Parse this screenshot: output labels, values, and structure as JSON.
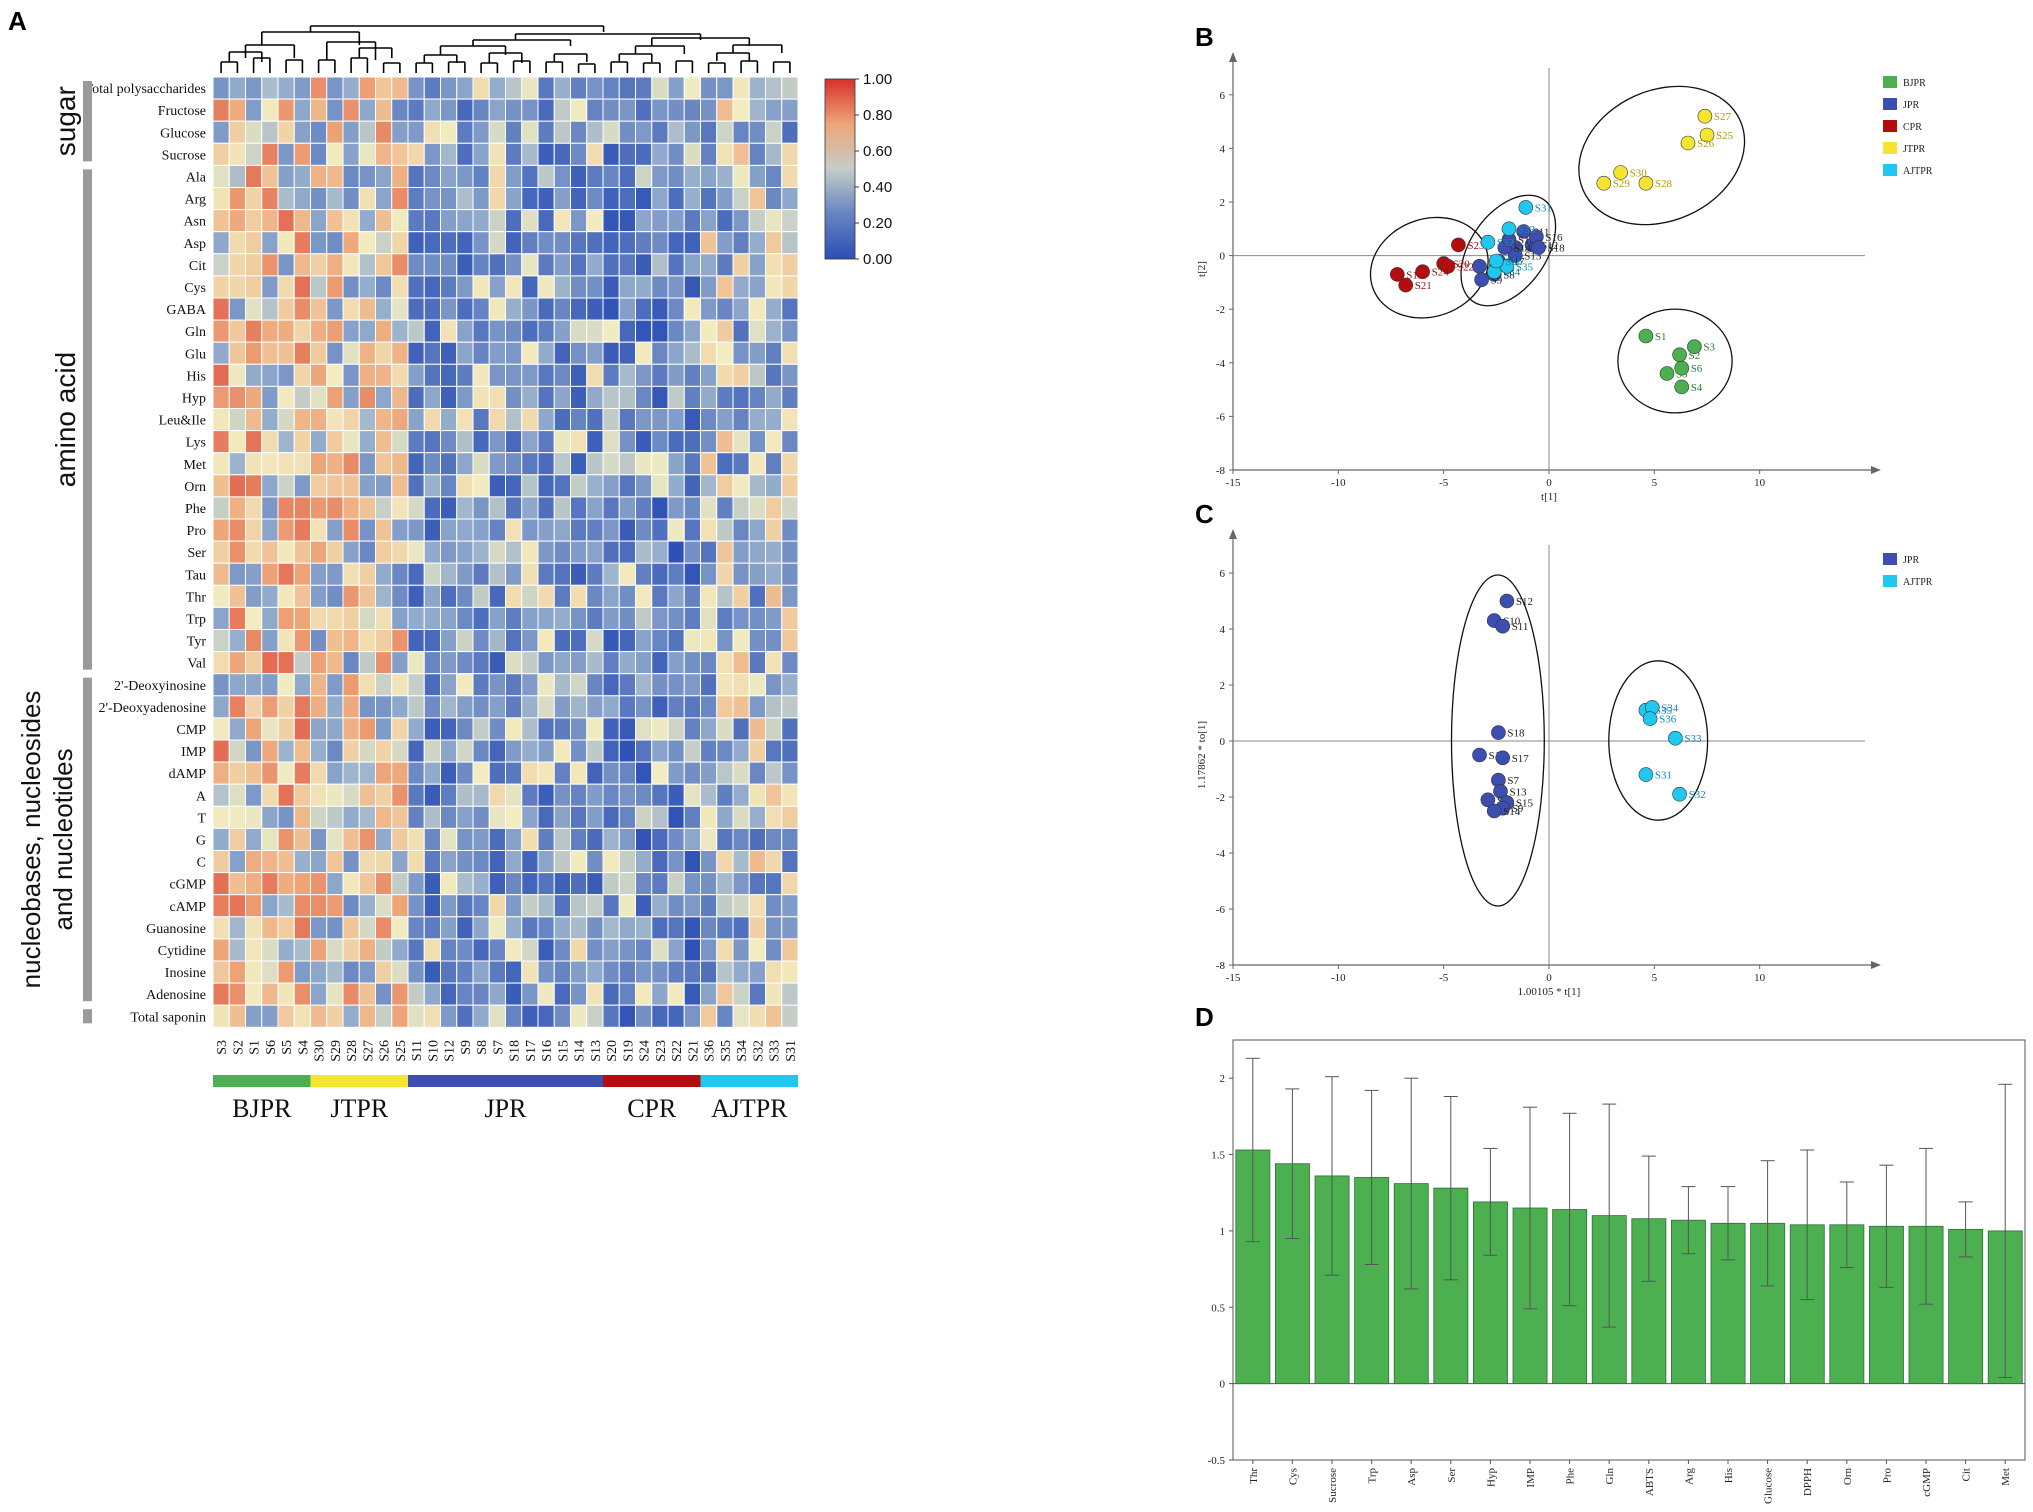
{
  "panel_labels": [
    "A",
    "B",
    "C",
    "D"
  ],
  "colors": {
    "BJPR": "#4caf50",
    "JTPR": "#f5e532",
    "JPR": "#3c4fb0",
    "CPR": "#b50d0d",
    "AJTPR": "#20c8f0",
    "bar_fill": "#4caf50",
    "heat_low": "#2b4fb5",
    "heat_mid": "#f2ecc0",
    "heat_high": "#d7302a"
  },
  "chart_data": [
    {
      "type": "heatmap",
      "panel": "A",
      "colorbar": {
        "min": 0.0,
        "max": 1.0,
        "ticks": [
          "1.00",
          "0.80",
          "0.60",
          "0.40",
          "0.20",
          "0.00"
        ]
      },
      "columns": [
        "S3",
        "S2",
        "S1",
        "S6",
        "S5",
        "S4",
        "S30",
        "S29",
        "S28",
        "S27",
        "S26",
        "S25",
        "S11",
        "S10",
        "S12",
        "S9",
        "S8",
        "S7",
        "S18",
        "S17",
        "S16",
        "S15",
        "S14",
        "S13",
        "S20",
        "S19",
        "S24",
        "S23",
        "S22",
        "S21",
        "S36",
        "S35",
        "S34",
        "S32",
        "S33",
        "S31"
      ],
      "groups": [
        {
          "name": "BJPR",
          "count": 6
        },
        {
          "name": "JTPR",
          "count": 6
        },
        {
          "name": "JPR",
          "count": 12
        },
        {
          "name": "CPR",
          "count": 6
        },
        {
          "name": "AJTPR",
          "count": 6
        }
      ],
      "row_groups": [
        {
          "name": "sugar",
          "rows": 4
        },
        {
          "name": "amino acid",
          "rows": 23
        },
        {
          "name": "nucleobases, nucleosides",
          "line2": "and nucleotides",
          "rows": 15
        },
        {
          "name": "",
          "rows": 1
        }
      ],
      "rows": [
        "Total polysaccharides",
        "Fructose",
        "Glucose",
        "Sucrose",
        "Ala",
        "Arg",
        "Asn",
        "Asp",
        "Cit",
        "Cys",
        "GABA",
        "Gln",
        "Glu",
        "His",
        "Hyp",
        "Leu&Ile",
        "Lys",
        "Met",
        "Orn",
        "Phe",
        "Pro",
        "Ser",
        "Tau",
        "Thr",
        "Trp",
        "Tyr",
        "Val",
        "2'-Deoxyinosine",
        "2'-Deoxyadenosine",
        "CMP",
        "IMP",
        "dAMP",
        "A",
        "T",
        "G",
        "C",
        "cGMP",
        "cAMP",
        "Guanosine",
        "Cytidine",
        "Inosine",
        "Adenosine",
        "Total saponin"
      ]
    },
    {
      "type": "scatter",
      "panel": "B",
      "xlabel": "t[1]",
      "ylabel": "t[2]",
      "xlim": [
        -15,
        15
      ],
      "ylim": [
        -8,
        7
      ],
      "xticks": [
        -15,
        -10,
        -5,
        0,
        5,
        10
      ],
      "yticks": [
        -8,
        -6,
        -4,
        -2,
        0,
        2,
        4,
        6
      ],
      "legend": [
        "BJPR",
        "JPR",
        "CPR",
        "JTPR",
        "AJTPR"
      ],
      "series": [
        {
          "name": "BJPR",
          "points": [
            [
              "S1",
              4.6,
              -3.0
            ],
            [
              "S2",
              6.2,
              -3.7
            ],
            [
              "S3",
              6.9,
              -3.4
            ],
            [
              "S4",
              6.3,
              -4.9
            ],
            [
              "S5",
              5.6,
              -4.4
            ],
            [
              "S6",
              6.3,
              -4.2
            ]
          ]
        },
        {
          "name": "JPR",
          "points": [
            [
              "S7",
              -3.3,
              -0.4
            ],
            [
              "S8",
              -2.6,
              -0.7
            ],
            [
              "S9",
              -3.2,
              -0.9
            ],
            [
              "S10",
              -1.6,
              0.3
            ],
            [
              "S11",
              -1.2,
              0.9
            ],
            [
              "S12",
              -0.8,
              0.4
            ],
            [
              "S13",
              -1.6,
              0.0
            ],
            [
              "S14",
              -2.1,
              0.3
            ],
            [
              "S15",
              -1.9,
              0.6
            ],
            [
              "S16",
              -0.6,
              0.7
            ],
            [
              "S17",
              -2.4,
              -0.2
            ],
            [
              "S18",
              -0.5,
              0.3
            ]
          ]
        },
        {
          "name": "CPR",
          "points": [
            [
              "S19",
              -7.2,
              -0.7
            ],
            [
              "S20",
              -5.0,
              -0.3
            ],
            [
              "S21",
              -6.8,
              -1.1
            ],
            [
              "S22",
              -4.8,
              -0.4
            ],
            [
              "S23",
              -4.3,
              0.4
            ],
            [
              "S24",
              -6.0,
              -0.6
            ]
          ]
        },
        {
          "name": "JTPR",
          "points": [
            [
              "S25",
              7.5,
              4.5
            ],
            [
              "S26",
              6.6,
              4.2
            ],
            [
              "S27",
              7.4,
              5.2
            ],
            [
              "S28",
              4.6,
              2.7
            ],
            [
              "S29",
              2.6,
              2.7
            ],
            [
              "S30",
              3.4,
              3.1
            ]
          ]
        },
        {
          "name": "AJTPR",
          "points": [
            [
              "S31",
              -1.1,
              1.8
            ],
            [
              "S32",
              -2.9,
              0.5
            ],
            [
              "S33",
              -1.9,
              1.0
            ],
            [
              "S34",
              -2.6,
              -0.6
            ],
            [
              "S35",
              -2.0,
              -0.4
            ],
            [
              "S36",
              -2.5,
              -0.2
            ]
          ]
        }
      ]
    },
    {
      "type": "scatter",
      "panel": "C",
      "xlabel": "1.00105 * t[1]",
      "ylabel": "1.17862 * to[1]",
      "xlim": [
        -15,
        15
      ],
      "ylim": [
        -8,
        7
      ],
      "xticks": [
        -15,
        -10,
        -5,
        0,
        5,
        10
      ],
      "yticks": [
        -8,
        -6,
        -4,
        -2,
        0,
        2,
        4,
        6
      ],
      "legend": [
        "JPR",
        "AJTPR"
      ],
      "series": [
        {
          "name": "JPR",
          "points": [
            [
              "S12",
              -2.0,
              5.0
            ],
            [
              "S10",
              -2.6,
              4.3
            ],
            [
              "S11",
              -2.2,
              4.1
            ],
            [
              "S18",
              -2.4,
              0.3
            ],
            [
              "S16",
              -3.3,
              -0.5
            ],
            [
              "S17",
              -2.2,
              -0.6
            ],
            [
              "S7",
              -2.4,
              -1.4
            ],
            [
              "S13",
              -2.3,
              -1.8
            ],
            [
              "S8",
              -2.9,
              -2.1
            ],
            [
              "S15",
              -2.0,
              -2.2
            ],
            [
              "S9",
              -2.2,
              -2.4
            ],
            [
              "S14",
              -2.6,
              -2.5
            ]
          ]
        },
        {
          "name": "AJTPR",
          "points": [
            [
              "S35",
              4.6,
              1.1
            ],
            [
              "S34",
              4.9,
              1.2
            ],
            [
              "S36",
              4.8,
              0.8
            ],
            [
              "S33",
              6.0,
              0.1
            ],
            [
              "S31",
              4.6,
              -1.2
            ],
            [
              "S32",
              6.2,
              -1.9
            ]
          ]
        }
      ]
    },
    {
      "type": "bar",
      "panel": "D",
      "categories": [
        "Thr",
        "Cys",
        "Sucrose",
        "Trp",
        "Asp",
        "Ser",
        "Hyp",
        "IMP",
        "Phe",
        "Gln",
        "ABTS",
        "Arg",
        "His",
        "Glucose",
        "DPPH",
        "Orn",
        "Pro",
        "cGMP",
        "Cit",
        "Met"
      ],
      "values": [
        1.53,
        1.44,
        1.36,
        1.35,
        1.31,
        1.28,
        1.19,
        1.15,
        1.14,
        1.1,
        1.08,
        1.07,
        1.05,
        1.05,
        1.04,
        1.04,
        1.03,
        1.03,
        1.01,
        1.0
      ],
      "errors": [
        0.6,
        0.49,
        0.65,
        0.57,
        0.69,
        0.6,
        0.35,
        0.66,
        0.63,
        0.73,
        0.41,
        0.22,
        0.24,
        0.41,
        0.49,
        0.28,
        0.4,
        0.51,
        0.18,
        0.96
      ],
      "ylim": [
        -0.5,
        2.25
      ],
      "yticks": [
        "-0.5",
        "0",
        "0.5",
        "1",
        "1.5",
        "2"
      ]
    }
  ]
}
